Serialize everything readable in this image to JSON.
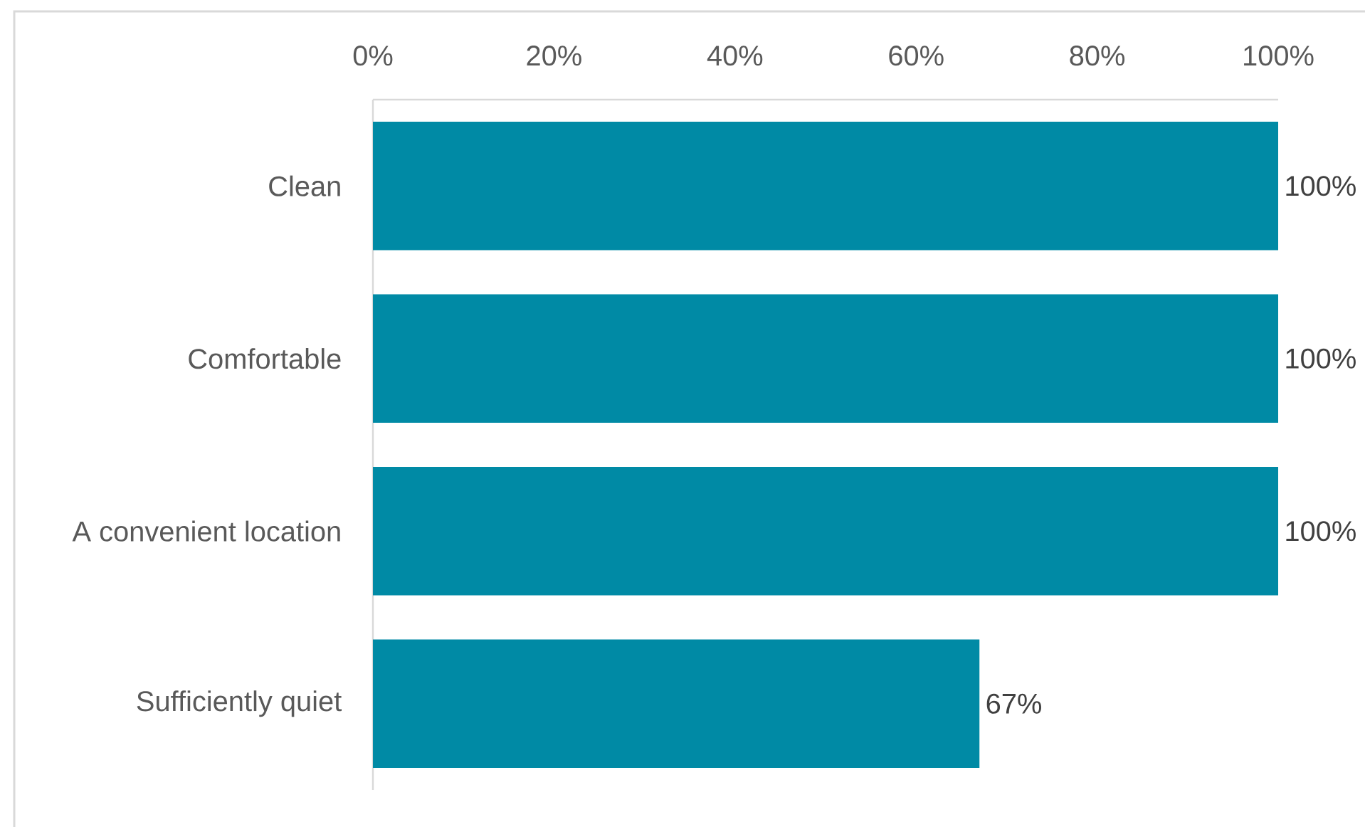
{
  "chart_data": {
    "type": "bar",
    "orientation": "horizontal",
    "categories": [
      "Clean",
      "Comfortable",
      "A convenient location",
      "Sufficiently quiet"
    ],
    "values": [
      100,
      100,
      100,
      67
    ],
    "color": "#008AA5",
    "xlim": [
      0,
      100
    ],
    "xticks": [
      {
        "value": 0,
        "label": "0%"
      },
      {
        "value": 20,
        "label": "20%"
      },
      {
        "value": 40,
        "label": "40%"
      },
      {
        "value": 60,
        "label": "60%"
      },
      {
        "value": 80,
        "label": "80%"
      },
      {
        "value": 100,
        "label": "100%"
      }
    ],
    "value_labels": [
      "100%",
      "100%",
      "100%",
      "67%"
    ]
  }
}
